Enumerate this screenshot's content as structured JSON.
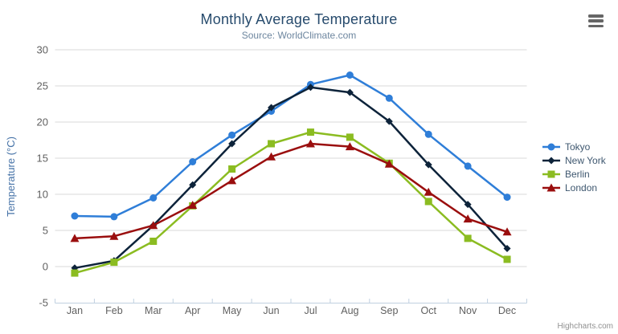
{
  "chart": {
    "credits": "Highcharts.com",
    "menu_icon": "hamburger-icon"
  },
  "colors": {
    "title": "#274b6d",
    "subtitle": "#6D869F",
    "axis_title": "#4572A7",
    "tick_label": "#606060",
    "gridline": "#D8D8D8",
    "axis_line": "#C0D0E0",
    "legend_text": "#3E576F",
    "credits_text": "#909090",
    "menu_icon": "#666666"
  },
  "chart_data": {
    "type": "line",
    "title": "Monthly Average Temperature",
    "subtitle": "Source: WorldClimate.com",
    "xlabel": "",
    "ylabel": "Temperature (°C)",
    "ylim": [
      -5,
      30
    ],
    "ytick_interval": 5,
    "yticks": [
      -5,
      0,
      5,
      10,
      15,
      20,
      25,
      30
    ],
    "grid": true,
    "legend_position": "right",
    "categories": [
      "Jan",
      "Feb",
      "Mar",
      "Apr",
      "May",
      "Jun",
      "Jul",
      "Aug",
      "Sep",
      "Oct",
      "Nov",
      "Dec"
    ],
    "series": [
      {
        "name": "Tokyo",
        "color": "#2f7ed8",
        "marker": "circle",
        "values": [
          7.0,
          6.9,
          9.5,
          14.5,
          18.2,
          21.5,
          25.2,
          26.5,
          23.3,
          18.3,
          13.9,
          9.6
        ]
      },
      {
        "name": "New York",
        "color": "#0d233a",
        "marker": "diamond",
        "values": [
          -0.2,
          0.8,
          5.7,
          11.3,
          17.0,
          22.0,
          24.8,
          24.1,
          20.1,
          14.1,
          8.6,
          2.5
        ]
      },
      {
        "name": "Berlin",
        "color": "#8bbc21",
        "marker": "square",
        "values": [
          -0.9,
          0.6,
          3.5,
          8.4,
          13.5,
          17.0,
          18.6,
          17.9,
          14.3,
          9.0,
          3.9,
          1.0
        ]
      },
      {
        "name": "London",
        "color": "#9a0e0e",
        "marker": "triangle",
        "values": [
          3.9,
          4.2,
          5.7,
          8.5,
          11.9,
          15.2,
          17.0,
          16.6,
          14.2,
          10.3,
          6.6,
          4.8
        ]
      }
    ]
  }
}
